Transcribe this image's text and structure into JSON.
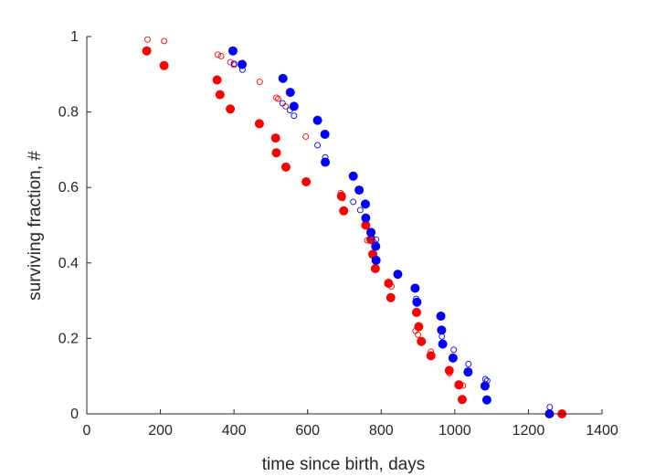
{
  "chart_data": {
    "type": "scatter",
    "title": "",
    "xlabel": "time since birth, days",
    "ylabel": "surviving fraction, #",
    "xlim": [
      0,
      1400
    ],
    "ylim": [
      0,
      1
    ],
    "xticks": [
      "0",
      "200",
      "400",
      "600",
      "800",
      "1000",
      "1200",
      "1400"
    ],
    "yticks": [
      "0",
      "0.2",
      "0.4",
      "0.6",
      "0.8",
      "1"
    ],
    "grid": false,
    "legend": "none",
    "colors": {
      "red": "#ff0000",
      "blue": "#0000ff",
      "axis": "#262626"
    },
    "series": [
      {
        "marker": "filled-circle",
        "color": "#ff0000",
        "points": [
          [
            163,
            0.962
          ],
          [
            210,
            0.923
          ],
          [
            354,
            0.885
          ],
          [
            362,
            0.846
          ],
          [
            390,
            0.808
          ],
          [
            469,
            0.769
          ],
          [
            513,
            0.731
          ],
          [
            515,
            0.692
          ],
          [
            541,
            0.654
          ],
          [
            596,
            0.615
          ],
          [
            692,
            0.577
          ],
          [
            698,
            0.538
          ],
          [
            758,
            0.5
          ],
          [
            772,
            0.462
          ],
          [
            777,
            0.423
          ],
          [
            784,
            0.385
          ],
          [
            820,
            0.346
          ],
          [
            826,
            0.308
          ],
          [
            896,
            0.269
          ],
          [
            902,
            0.231
          ],
          [
            909,
            0.192
          ],
          [
            935,
            0.154
          ],
          [
            985,
            0.115
          ],
          [
            1011,
            0.077
          ],
          [
            1020,
            0.038
          ],
          [
            1291,
            0.0
          ]
        ]
      },
      {
        "marker": "open-circle",
        "color": "#ff0000",
        "points": [
          [
            165,
            0.992
          ],
          [
            210,
            0.988
          ],
          [
            356,
            0.952
          ],
          [
            365,
            0.948
          ],
          [
            390,
            0.932
          ],
          [
            400,
            0.925
          ],
          [
            470,
            0.88
          ],
          [
            515,
            0.838
          ],
          [
            520,
            0.835
          ],
          [
            540,
            0.815
          ],
          [
            595,
            0.735
          ],
          [
            690,
            0.585
          ],
          [
            695,
            0.572
          ],
          [
            762,
            0.46
          ],
          [
            780,
            0.456
          ],
          [
            820,
            0.343
          ],
          [
            828,
            0.338
          ],
          [
            893,
            0.22
          ],
          [
            900,
            0.21
          ],
          [
            935,
            0.165
          ],
          [
            985,
            0.108
          ],
          [
            1012,
            0.08
          ],
          [
            1022,
            0.075
          ]
        ]
      },
      {
        "marker": "filled-circle",
        "color": "#0000ff",
        "points": [
          [
            397,
            0.962
          ],
          [
            422,
            0.926
          ],
          [
            533,
            0.889
          ],
          [
            553,
            0.852
          ],
          [
            563,
            0.815
          ],
          [
            627,
            0.778
          ],
          [
            647,
            0.741
          ],
          [
            648,
            0.667
          ],
          [
            724,
            0.63
          ],
          [
            740,
            0.593
          ],
          [
            757,
            0.556
          ],
          [
            758,
            0.519
          ],
          [
            772,
            0.481
          ],
          [
            785,
            0.444
          ],
          [
            786,
            0.407
          ],
          [
            845,
            0.37
          ],
          [
            892,
            0.333
          ],
          [
            897,
            0.296
          ],
          [
            962,
            0.259
          ],
          [
            964,
            0.222
          ],
          [
            967,
            0.185
          ],
          [
            995,
            0.148
          ],
          [
            1036,
            0.111
          ],
          [
            1082,
            0.074
          ],
          [
            1087,
            0.037
          ],
          [
            1257,
            0.0
          ]
        ]
      },
      {
        "marker": "open-circle",
        "color": "#0000ff",
        "points": [
          [
            400,
            0.928
          ],
          [
            423,
            0.912
          ],
          [
            532,
            0.823
          ],
          [
            552,
            0.805
          ],
          [
            563,
            0.79
          ],
          [
            627,
            0.712
          ],
          [
            648,
            0.68
          ],
          [
            724,
            0.562
          ],
          [
            743,
            0.54
          ],
          [
            774,
            0.468
          ],
          [
            786,
            0.462
          ],
          [
            845,
            0.368
          ],
          [
            895,
            0.305
          ],
          [
            965,
            0.205
          ],
          [
            997,
            0.17
          ],
          [
            1037,
            0.132
          ],
          [
            1083,
            0.092
          ],
          [
            1088,
            0.088
          ],
          [
            1258,
            0.018
          ]
        ]
      }
    ]
  }
}
